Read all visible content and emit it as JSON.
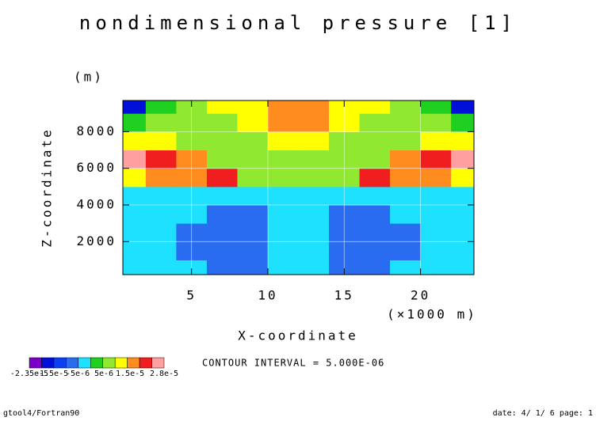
{
  "chart_data": {
    "type": "contour",
    "title": "nondimensional pressure [1]",
    "xlabel": "X-coordinate",
    "xunit": "(×1000 m)",
    "ylabel": "Z-coordinate",
    "yunit": "(m)",
    "note": "CONTOUR INTERVAL = 5.000E-06",
    "footer_left": "gtool4/Fortran90",
    "footer_right": "date: 4/ 1/ 6 page: 1",
    "xlim": [
      0.5,
      23.5
    ],
    "ylim": [
      200,
      9700
    ],
    "xticks": [
      5,
      10,
      15,
      20
    ],
    "yticks": [
      2000,
      4000,
      6000,
      8000
    ],
    "grid": true,
    "x": [
      1,
      3,
      5,
      7,
      9,
      11,
      13,
      15,
      17,
      19,
      21,
      23
    ],
    "y": [
      500,
      1500,
      2500,
      3500,
      4500,
      5500,
      6500,
      7500,
      8500,
      9500
    ],
    "z": [
      [
        -3e-06,
        -3e-06,
        -3e-06,
        -7e-06,
        -7e-06,
        -3e-06,
        -3e-06,
        -7e-06,
        -7e-06,
        -3e-06,
        -3e-06,
        -3e-06
      ],
      [
        -3e-06,
        -3e-06,
        -6e-06,
        -8e-06,
        -8e-06,
        -4e-06,
        -4e-06,
        -8e-06,
        -8e-06,
        -6e-06,
        -3e-06,
        -3e-06
      ],
      [
        -3e-06,
        -3e-06,
        -6e-06,
        -8e-06,
        -7e-06,
        -3e-06,
        -3e-06,
        -7e-06,
        -8e-06,
        -6e-06,
        -3e-06,
        -3e-06
      ],
      [
        -3e-06,
        -3e-06,
        -4e-06,
        -6e-06,
        -6e-06,
        -2e-06,
        -2e-06,
        -6e-06,
        -6e-06,
        -4e-06,
        -3e-06,
        -3e-06
      ],
      [
        -1e-06,
        -1e-06,
        -1e-06,
        -1e-06,
        -1e-06,
        -1e-06,
        -1e-06,
        -1e-06,
        -1e-06,
        -1e-06,
        -1e-06,
        -1e-06
      ],
      [
        1.4e-05,
        1.6e-05,
        1.7e-05,
        2.1e-05,
        9e-06,
        7e-06,
        7e-06,
        9e-06,
        2.1e-05,
        1.7e-05,
        1.6e-05,
        1.4e-05
      ],
      [
        2.7e-05,
        2.2e-05,
        1.6e-05,
        9e-06,
        5e-06,
        7e-06,
        7e-06,
        5e-06,
        9e-06,
        1.6e-05,
        2.2e-05,
        2.7e-05
      ],
      [
        1.2e-05,
        1e-05,
        7e-06,
        5e-06,
        9e-06,
        1.2e-05,
        1.2e-05,
        9e-06,
        5e-06,
        7e-06,
        1e-05,
        1.2e-05
      ],
      [
        3e-06,
        6e-06,
        8e-06,
        9e-06,
        1.3e-05,
        1.8e-05,
        1.8e-05,
        1.3e-05,
        9e-06,
        8e-06,
        6e-06,
        3e-06
      ],
      [
        -2e-05,
        1e-06,
        8e-06,
        1.2e-05,
        1.3e-05,
        1.8e-05,
        1.8e-05,
        1.3e-05,
        1.2e-05,
        8e-06,
        1e-06,
        -2e-05
      ]
    ],
    "levels": [
      -2.35e-05,
      -2e-05,
      -1.5e-05,
      -1e-05,
      -5e-06,
      0,
      5e-06,
      1e-05,
      1.5e-05,
      2e-05,
      2.5e-05,
      2.8e-05
    ],
    "colors": [
      "#7a00c8",
      "#0010d8",
      "#0a40f0",
      "#2a6cf0",
      "#1ee0ff",
      "#20d020",
      "#90e830",
      "#ffff00",
      "#ff8c1e",
      "#f01e1e",
      "#ffa0a0"
    ],
    "colorbar_ticks": [
      {
        "value": -2.35e-05,
        "label": "-2.35e-5"
      },
      {
        "value": -1.5e-05,
        "label": "-1.5e-5"
      },
      {
        "value": -5e-06,
        "label": "-5e-6"
      },
      {
        "value": 5e-06,
        "label": "5e-6"
      },
      {
        "value": 1.5e-05,
        "label": "1.5e-5"
      },
      {
        "value": 2.8e-05,
        "label": "2.8e-5"
      }
    ]
  }
}
